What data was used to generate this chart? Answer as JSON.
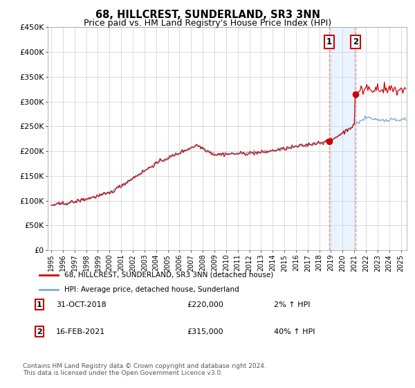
{
  "title": "68, HILLCREST, SUNDERLAND, SR3 3NN",
  "subtitle": "Price paid vs. HM Land Registry's House Price Index (HPI)",
  "title_fontsize": 10.5,
  "subtitle_fontsize": 9,
  "ylim": [
    0,
    450000
  ],
  "yticks": [
    0,
    50000,
    100000,
    150000,
    200000,
    250000,
    300000,
    350000,
    400000,
    450000
  ],
  "ytick_labels": [
    "£0",
    "£50K",
    "£100K",
    "£150K",
    "£200K",
    "£250K",
    "£300K",
    "£350K",
    "£400K",
    "£450K"
  ],
  "xlim_start": 1994.7,
  "xlim_end": 2025.5,
  "event1_x": 2018.83,
  "event1_y": 220000,
  "event1_label": "31-OCT-2018",
  "event1_price": "£220,000",
  "event1_hpi": "2% ↑ HPI",
  "event2_x": 2021.12,
  "event2_y": 315000,
  "event2_label": "16-FEB-2021",
  "event2_price": "£315,000",
  "event2_hpi": "40% ↑ HPI",
  "line_color_property": "#cc0000",
  "line_color_hpi": "#7aafd4",
  "shade_color": "#ddeeff",
  "vline_color": "#e88888",
  "legend_label_property": "68, HILLCREST, SUNDERLAND, SR3 3NN (detached house)",
  "legend_label_hpi": "HPI: Average price, detached house, Sunderland",
  "footer": "Contains HM Land Registry data © Crown copyright and database right 2024.\nThis data is licensed under the Open Government Licence v3.0.",
  "background_color": "#ffffff",
  "grid_color": "#cccccc"
}
